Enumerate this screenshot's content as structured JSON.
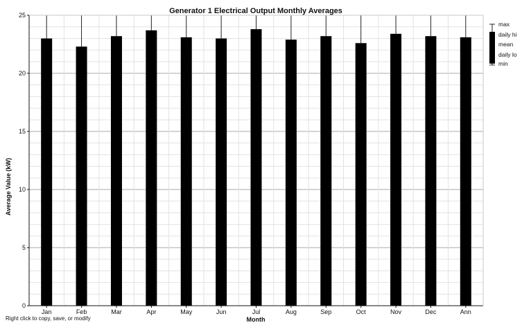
{
  "chart_data": {
    "type": "bar",
    "title": "Generator 1 Electrical Output Monthly Averages",
    "xlabel": "Month",
    "ylabel": "Average Value (kW)",
    "ylim": [
      0,
      25
    ],
    "yticks": [
      0,
      5,
      10,
      15,
      20,
      25
    ],
    "categories": [
      "Jan",
      "Feb",
      "Mar",
      "Apr",
      "May",
      "Jun",
      "Jul",
      "Aug",
      "Sep",
      "Oct",
      "Nov",
      "Dec",
      "Ann"
    ],
    "series": [
      {
        "name": "mean",
        "values": [
          23.0,
          22.3,
          23.2,
          23.7,
          23.1,
          23.0,
          23.8,
          22.9,
          23.2,
          22.6,
          23.4,
          23.2,
          23.1
        ]
      },
      {
        "name": "max",
        "values": [
          25,
          25,
          25,
          25,
          25,
          25,
          25,
          25,
          25,
          25,
          25,
          25,
          25
        ]
      },
      {
        "name": "min",
        "values": [
          0,
          0,
          0,
          0,
          0,
          0,
          0,
          0,
          0,
          0,
          0,
          0,
          0
        ]
      }
    ],
    "grid": true,
    "legend": {
      "placement": "right",
      "entries": [
        "max",
        "daily hi",
        "mean",
        "daily lo",
        "min"
      ]
    },
    "colors": {
      "bar": "#000000",
      "grid": "#b8b8b8",
      "axis": "#111111",
      "background": "#ffffff"
    }
  },
  "footer": {
    "hint": "Right click to copy, save, or modify"
  }
}
